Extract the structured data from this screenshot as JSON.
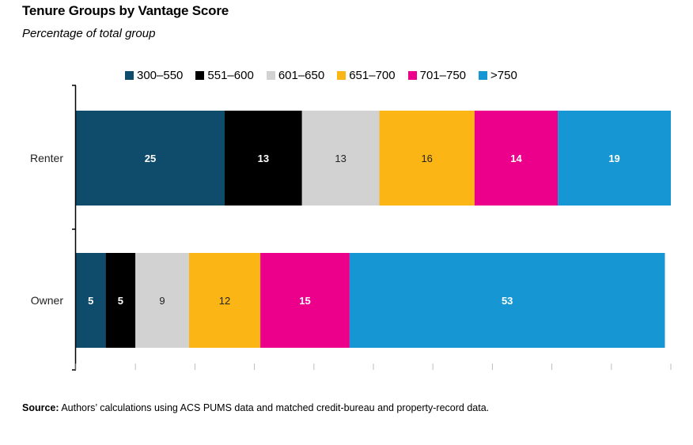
{
  "chart_data": {
    "type": "bar",
    "orientation": "horizontal",
    "stacked": true,
    "title": "Tenure Groups by Vantage Score",
    "subtitle": "Percentage of total group",
    "categories": [
      "Renter",
      "Owner"
    ],
    "xlim": [
      0,
      100
    ],
    "legend_position": "top",
    "series": [
      {
        "name": "300–550",
        "color": "#0f4b6b",
        "label_color": "#ffffff",
        "values": [
          25,
          5
        ]
      },
      {
        "name": "551–600",
        "color": "#000000",
        "label_color": "#ffffff",
        "values": [
          13,
          5
        ]
      },
      {
        "name": "601–650",
        "color": "#d2d2d2",
        "label_color": "#222222",
        "values": [
          13,
          9
        ]
      },
      {
        "name": "651–700",
        "color": "#fbb615",
        "label_color": "#222222",
        "values": [
          16,
          12
        ]
      },
      {
        "name": "701–750",
        "color": "#ec008b",
        "label_color": "#ffffff",
        "values": [
          14,
          15
        ]
      },
      {
        "name": ">750",
        "color": "#1696d2",
        "label_color": "#ffffff",
        "values": [
          19,
          53
        ]
      }
    ]
  },
  "source": {
    "label": "Source:",
    "text": " Authors’ calculations using ACS PUMS data and matched credit-bureau and property-record data."
  }
}
